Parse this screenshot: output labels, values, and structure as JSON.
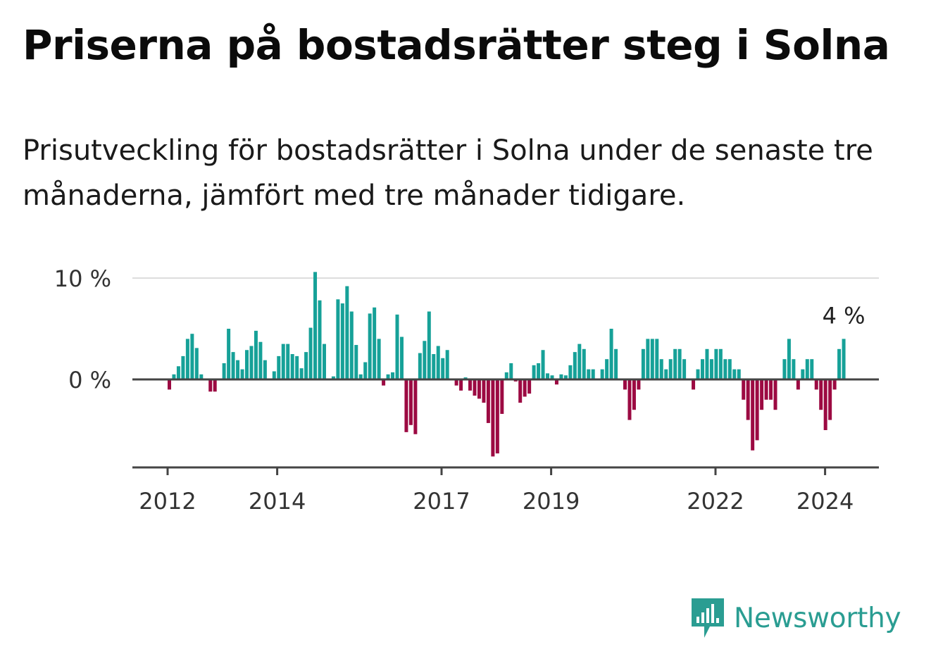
{
  "title": "Priserna på bostadsrätter steg i Solna",
  "subtitle": "Prisutveckling för bostadsrätter i Solna under de senaste tre månaderna, jämfört med tre månader tidigare.",
  "brand": {
    "name": "Newsworthy",
    "icon": "newsworthy-logo-icon",
    "color": "#2a9d92"
  },
  "colors": {
    "positive": "#16a198",
    "negative": "#9c0a42",
    "gridline": "#dddddd",
    "axis": "#444444"
  },
  "chart_data": {
    "type": "bar",
    "title": "Priserna på bostadsrätter steg i Solna",
    "xlabel": "",
    "ylabel": "",
    "ylim": [
      -8.7,
      10
    ],
    "yticks": [
      {
        "value": 0,
        "label": "0 %"
      },
      {
        "value": 10,
        "label": "10 %"
      }
    ],
    "xticks": [
      {
        "year": 2012,
        "label": "2012"
      },
      {
        "year": 2014,
        "label": "2014"
      },
      {
        "year": 2017,
        "label": "2017"
      },
      {
        "year": 2019,
        "label": "2019"
      },
      {
        "year": 2022,
        "label": "2022"
      },
      {
        "year": 2024,
        "label": "2024"
      }
    ],
    "x_start": "2011-09",
    "x_end": "2024-03",
    "unit": "%",
    "last_value_label": "4 %",
    "grid": true,
    "series": [
      {
        "name": "Prisutveckling",
        "values": [
          -1.0,
          0.5,
          1.3,
          2.3,
          4.0,
          4.5,
          3.1,
          0.5,
          0.1,
          -1.2,
          -1.2,
          -0.1,
          1.6,
          5.0,
          2.7,
          1.9,
          1.0,
          2.9,
          3.3,
          4.8,
          3.7,
          1.9,
          0.1,
          0.8,
          2.3,
          3.5,
          3.5,
          2.5,
          2.3,
          1.1,
          2.7,
          5.1,
          10.6,
          7.8,
          3.5,
          0.1,
          0.3,
          7.9,
          7.5,
          9.2,
          6.7,
          3.4,
          0.5,
          1.7,
          6.5,
          7.1,
          4.0,
          -0.6,
          0.5,
          0.7,
          6.4,
          4.2,
          -5.2,
          -4.5,
          -5.4,
          2.6,
          3.8,
          6.7,
          2.5,
          3.3,
          2.1,
          2.9,
          0.1,
          -0.6,
          -1.1,
          0.2,
          -1.1,
          -1.6,
          -1.9,
          -2.3,
          -4.3,
          -7.6,
          -7.3,
          -3.4,
          0.7,
          1.6,
          -0.2,
          -2.3,
          -1.7,
          -1.4,
          1.4,
          1.6,
          2.9,
          0.6,
          0.4,
          -0.5,
          0.5,
          0.4,
          1.4,
          2.7,
          3.5,
          3.0,
          1.0,
          1.0,
          0.1,
          1.0,
          2.0,
          5.0,
          3.0,
          0.1,
          -1.0,
          -4.0,
          -3.0,
          -1.0,
          3.0,
          4.0,
          4.0,
          4.0,
          2.0,
          1.0,
          2.0,
          3.0,
          3.0,
          2.0,
          0.1,
          -1.0,
          1.0,
          2.0,
          3.0,
          2.0,
          3.0,
          3.0,
          2.0,
          2.0,
          1.0,
          1.0,
          -2.0,
          -4.0,
          -7.0,
          -6.0,
          -3.0,
          -2.0,
          -2.0,
          -3.0,
          0.1,
          2.0,
          4.0,
          2.0,
          -1.0,
          1.0,
          2.0,
          2.0,
          -1.0,
          -3.0,
          -5.0,
          -4.0,
          -1.0,
          3.0,
          4.0
        ]
      }
    ]
  }
}
